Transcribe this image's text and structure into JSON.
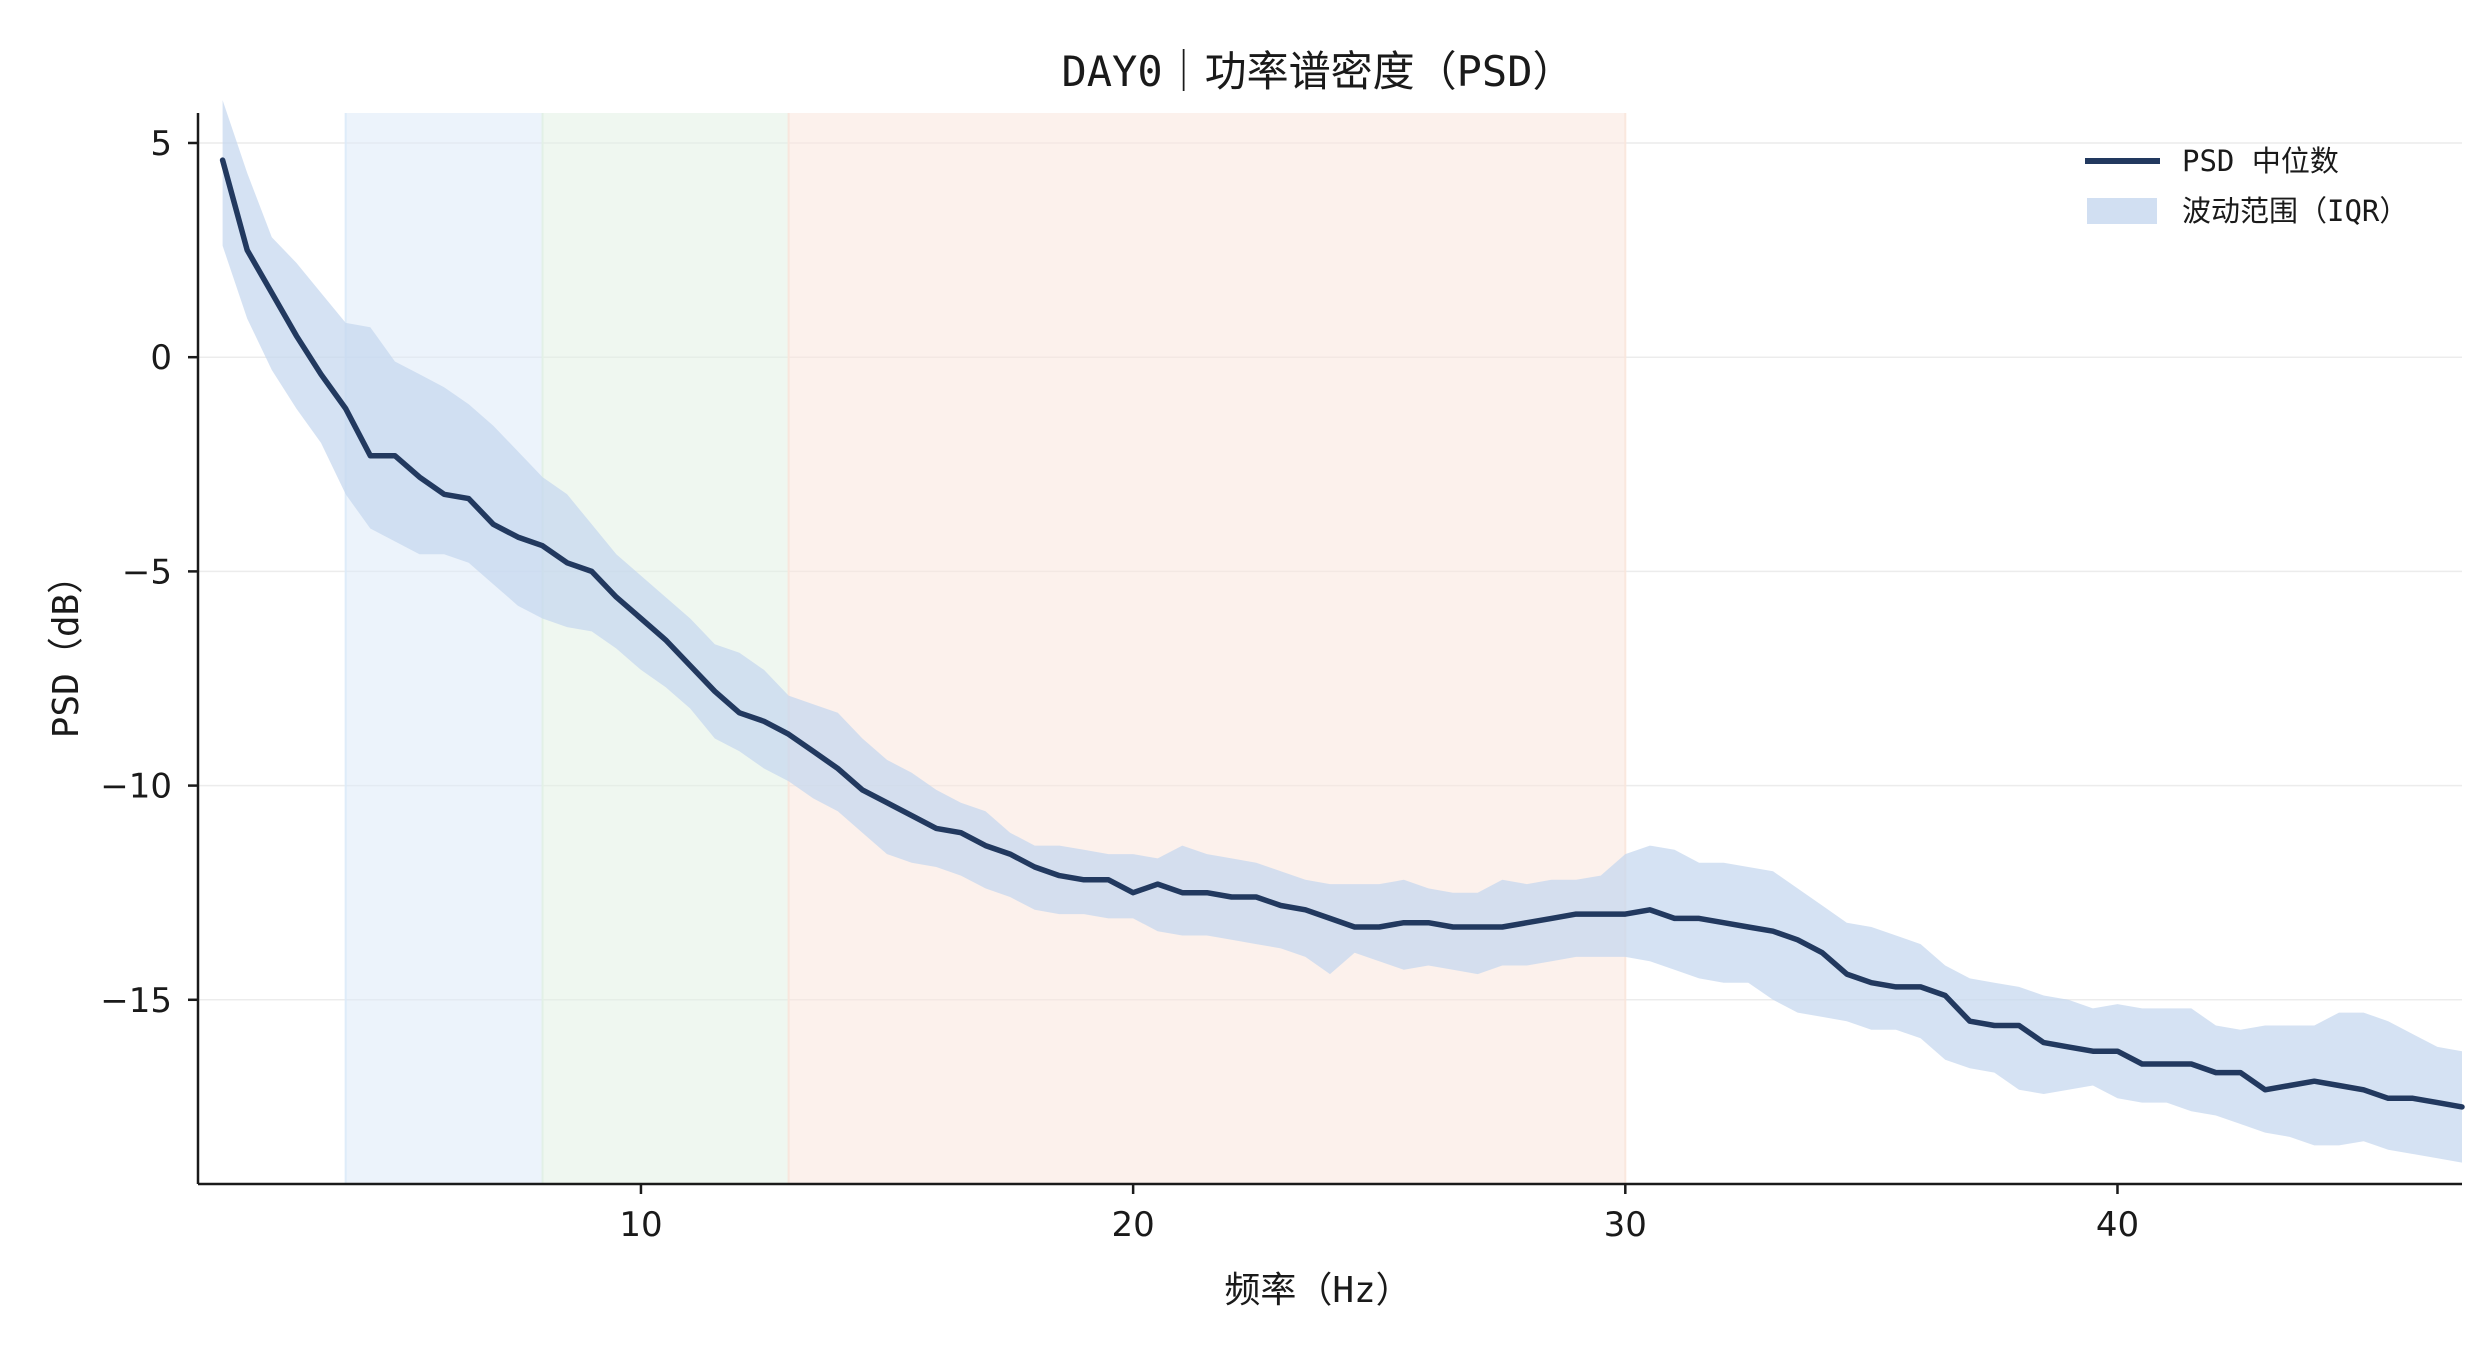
{
  "chart_data": {
    "type": "line",
    "title": "DAY0｜功率谱密度（PSD）",
    "xlabel": "频率（Hz）",
    "ylabel": "PSD（dB）",
    "xlim": [
      1,
      47
    ],
    "ylim": [
      -19.3,
      5.7
    ],
    "x_ticks": [
      10,
      20,
      30,
      40
    ],
    "y_ticks": [
      5,
      0,
      -5,
      -10,
      -15
    ],
    "y_tick_labels": [
      "5",
      "0",
      "−5",
      "−10",
      "−15"
    ],
    "grid": "horizontal",
    "legend": "top-right",
    "bands": [
      {
        "x0": 4,
        "x1": 8,
        "color": "#dceaf8"
      },
      {
        "x0": 8,
        "x1": 13,
        "color": "#e2f1e4"
      },
      {
        "x0": 13,
        "x1": 30,
        "color": "#f9e6dc"
      }
    ],
    "series": [
      {
        "name": "PSD 中位数",
        "color": "#22395f",
        "x": [
          1.5,
          2,
          2.5,
          3,
          3.5,
          4,
          4.5,
          5,
          5.5,
          6,
          6.5,
          7,
          7.5,
          8,
          8.5,
          9,
          9.5,
          10,
          10.5,
          11,
          11.5,
          12,
          12.5,
          13,
          13.5,
          14,
          14.5,
          15,
          15.5,
          16,
          16.5,
          17,
          17.5,
          18,
          18.5,
          19,
          19.5,
          20,
          20.5,
          21,
          21.5,
          22,
          22.5,
          23,
          23.5,
          24,
          24.5,
          25,
          25.5,
          26,
          26.5,
          27,
          27.5,
          28,
          28.5,
          29,
          29.5,
          30,
          30.5,
          31,
          31.5,
          32,
          32.5,
          33,
          33.5,
          34,
          34.5,
          35,
          35.5,
          36,
          36.5,
          37,
          37.5,
          38,
          38.5,
          39,
          39.5,
          40,
          40.5,
          41,
          41.5,
          42,
          42.5,
          43,
          43.5,
          44,
          44.5,
          45,
          45.5,
          46,
          46.5,
          47
        ],
        "y": [
          4.6,
          2.5,
          1.5,
          0.5,
          -0.4,
          -1.2,
          -2.3,
          -2.3,
          -2.8,
          -3.2,
          -3.3,
          -3.9,
          -4.2,
          -4.4,
          -4.8,
          -5.0,
          -5.6,
          -6.1,
          -6.6,
          -7.2,
          -7.8,
          -8.3,
          -8.5,
          -8.8,
          -9.2,
          -9.6,
          -10.1,
          -10.4,
          -10.7,
          -11.0,
          -11.1,
          -11.4,
          -11.6,
          -11.9,
          -12.1,
          -12.2,
          -12.2,
          -12.5,
          -12.3,
          -12.5,
          -12.5,
          -12.6,
          -12.6,
          -12.8,
          -12.9,
          -13.1,
          -13.3,
          -13.3,
          -13.2,
          -13.2,
          -13.3,
          -13.3,
          -13.3,
          -13.2,
          -13.1,
          -13.0,
          -13.0,
          -13.0,
          -12.9,
          -13.1,
          -13.1,
          -13.2,
          -13.3,
          -13.4,
          -13.6,
          -13.9,
          -14.4,
          -14.6,
          -14.7,
          -14.7,
          -14.9,
          -15.5,
          -15.6,
          -15.6,
          -16.0,
          -16.1,
          -16.2,
          -16.2,
          -16.5,
          -16.5,
          -16.5,
          -16.7,
          -16.7,
          -17.1,
          -17.0,
          -16.9,
          -17.0,
          -17.1,
          -17.3,
          -17.3,
          -17.4,
          -17.5
        ]
      },
      {
        "name": "波动范围（IQR）",
        "color": "#c5d7ef",
        "x": [
          1.5,
          2,
          2.5,
          3,
          3.5,
          4,
          4.5,
          5,
          5.5,
          6,
          6.5,
          7,
          7.5,
          8,
          8.5,
          9,
          9.5,
          10,
          10.5,
          11,
          11.5,
          12,
          12.5,
          13,
          13.5,
          14,
          14.5,
          15,
          15.5,
          16,
          16.5,
          17,
          17.5,
          18,
          18.5,
          19,
          19.5,
          20,
          20.5,
          21,
          21.5,
          22,
          22.5,
          23,
          23.5,
          24,
          24.5,
          25,
          25.5,
          26,
          26.5,
          27,
          27.5,
          28,
          28.5,
          29,
          29.5,
          30,
          30.5,
          31,
          31.5,
          32,
          32.5,
          33,
          33.5,
          34,
          34.5,
          35,
          35.5,
          36,
          36.5,
          37,
          37.5,
          38,
          38.5,
          39,
          39.5,
          40,
          40.5,
          41,
          41.5,
          42,
          42.5,
          43,
          43.5,
          44,
          44.5,
          45,
          45.5,
          46,
          46.5,
          47
        ],
        "lower": [
          2.6,
          0.9,
          -0.3,
          -1.2,
          -2.0,
          -3.2,
          -4.0,
          -4.3,
          -4.6,
          -4.6,
          -4.8,
          -5.3,
          -5.8,
          -6.1,
          -6.3,
          -6.4,
          -6.8,
          -7.3,
          -7.7,
          -8.2,
          -8.9,
          -9.2,
          -9.6,
          -9.9,
          -10.3,
          -10.6,
          -11.1,
          -11.6,
          -11.8,
          -11.9,
          -12.1,
          -12.4,
          -12.6,
          -12.9,
          -13.0,
          -13.0,
          -13.1,
          -13.1,
          -13.4,
          -13.5,
          -13.5,
          -13.6,
          -13.7,
          -13.8,
          -14.0,
          -14.4,
          -13.9,
          -14.1,
          -14.3,
          -14.2,
          -14.3,
          -14.4,
          -14.2,
          -14.2,
          -14.1,
          -14.0,
          -14.0,
          -14.0,
          -14.1,
          -14.3,
          -14.5,
          -14.6,
          -14.6,
          -15.0,
          -15.3,
          -15.4,
          -15.5,
          -15.7,
          -15.7,
          -15.9,
          -16.4,
          -16.6,
          -16.7,
          -17.1,
          -17.2,
          -17.1,
          -17.0,
          -17.3,
          -17.4,
          -17.4,
          -17.6,
          -17.7,
          -17.9,
          -18.1,
          -18.2,
          -18.4,
          -18.4,
          -18.3,
          -18.5,
          -18.6,
          -18.7,
          -18.8
        ],
        "upper": [
          6.0,
          4.3,
          2.8,
          2.2,
          1.5,
          0.8,
          0.7,
          -0.1,
          -0.4,
          -0.7,
          -1.1,
          -1.6,
          -2.2,
          -2.8,
          -3.2,
          -3.9,
          -4.6,
          -5.1,
          -5.6,
          -6.1,
          -6.7,
          -6.9,
          -7.3,
          -7.9,
          -8.1,
          -8.3,
          -8.9,
          -9.4,
          -9.7,
          -10.1,
          -10.4,
          -10.6,
          -11.1,
          -11.4,
          -11.4,
          -11.5,
          -11.6,
          -11.6,
          -11.7,
          -11.4,
          -11.6,
          -11.7,
          -11.8,
          -12.0,
          -12.2,
          -12.3,
          -12.3,
          -12.3,
          -12.2,
          -12.4,
          -12.5,
          -12.5,
          -12.2,
          -12.3,
          -12.2,
          -12.2,
          -12.1,
          -11.6,
          -11.4,
          -11.5,
          -11.8,
          -11.8,
          -11.9,
          -12.0,
          -12.4,
          -12.8,
          -13.2,
          -13.3,
          -13.5,
          -13.7,
          -14.2,
          -14.5,
          -14.6,
          -14.7,
          -14.9,
          -15.0,
          -15.2,
          -15.1,
          -15.2,
          -15.2,
          -15.2,
          -15.6,
          -15.7,
          -15.6,
          -15.6,
          -15.6,
          -15.3,
          -15.3,
          -15.5,
          -15.8,
          -16.1,
          -16.2
        ]
      }
    ]
  }
}
